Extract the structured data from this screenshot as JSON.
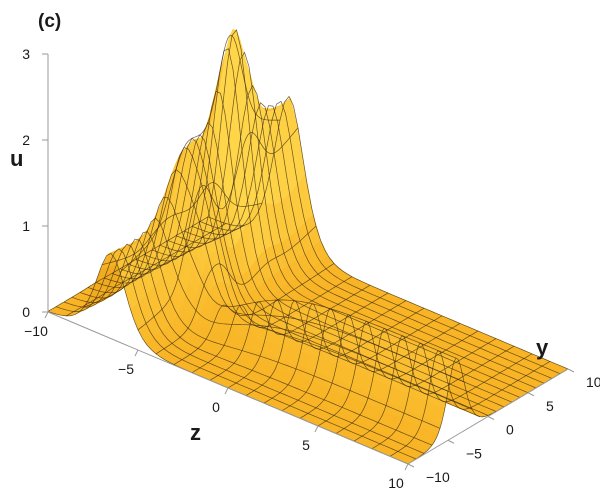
{
  "panel_label": "(c)",
  "chart_data": {
    "type": "surface3d",
    "title": "",
    "axis_labels": {
      "x": "z",
      "y": "y",
      "z": "u"
    },
    "xlim": [
      -10,
      10
    ],
    "ylim": [
      -10,
      10
    ],
    "zlim": [
      0,
      3
    ],
    "x_ticks": [
      "-10",
      "-5",
      "0",
      "5",
      "10"
    ],
    "y_ticks": [
      "-10",
      "-5",
      "0",
      "5",
      "10"
    ],
    "z_ticks": [
      "0",
      "1",
      "2",
      "3"
    ],
    "surface": {
      "description_of_shape": "line soliton ridge along y-direction that splits into two peaks near z=-5",
      "mesh_lines_per_axis": 20,
      "colors": {
        "low": "#f7b020",
        "high": "#ffd54a",
        "shadow": "#6b3300",
        "mesh": "#3a2a10"
      },
      "features": [
        {
          "name": "ridge",
          "z_center_at_y_pos": 3,
          "height": 1.8
        },
        {
          "name": "peak",
          "z": -5.8,
          "y": 3.8,
          "height": 2.7
        },
        {
          "name": "peak",
          "z": -4.8,
          "y": -2.2,
          "height": 2.4
        }
      ]
    }
  }
}
